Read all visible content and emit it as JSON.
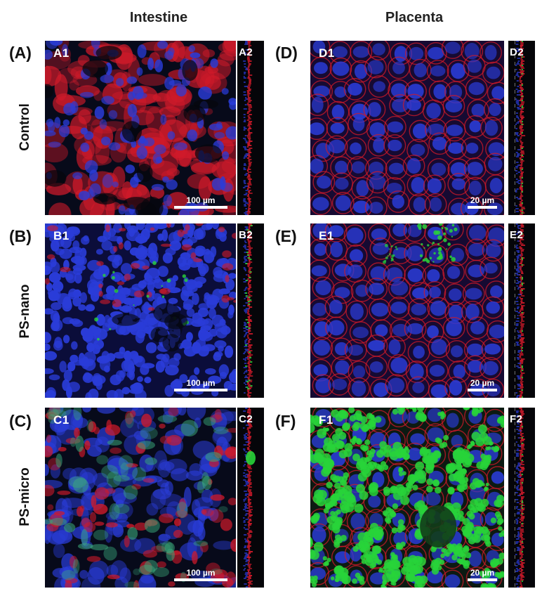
{
  "columns": {
    "intestine": "Intestine",
    "placenta": "Placenta"
  },
  "rows": {
    "control": "Control",
    "ps_nano": "PS-nano",
    "ps_micro": "PS-micro"
  },
  "panel_letters": {
    "a": "(A)",
    "b": "(B)",
    "c": "(C)",
    "d": "(D)",
    "e": "(E)",
    "f": "(F)"
  },
  "sub_labels": {
    "a1": "A1",
    "a2": "A2",
    "b1": "B1",
    "b2": "B2",
    "c1": "C1",
    "c2": "C2",
    "d1": "D1",
    "d2": "D2",
    "e1": "E1",
    "e2": "E2",
    "f1": "F1",
    "f2": "F2"
  },
  "scale_bars": {
    "intestine": "100 µm",
    "placenta": "20 µm"
  },
  "colors": {
    "red": "#d01a2a",
    "blue": "#2a3cd8",
    "green": "#28d43a",
    "background": "#070a1a"
  }
}
